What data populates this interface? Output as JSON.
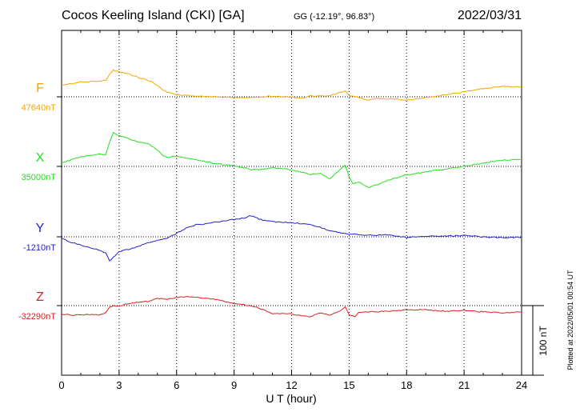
{
  "header": {
    "title": "Cocos Keeling Island (CKI)  [GA]",
    "coords": "GG (-12.19°,  96.83°)",
    "date": "2022/03/31"
  },
  "side_note": "Plotted at 2022/05/01 00:54 UT",
  "scale_label": "100 nT",
  "chart_data": {
    "type": "line",
    "title": "Cocos Keeling Island (CKI)  [GA]",
    "xlabel": "U T (hour)",
    "ylabel": "",
    "xlim": [
      0,
      24
    ],
    "x_ticks": [
      0,
      3,
      6,
      9,
      12,
      15,
      18,
      21,
      24
    ],
    "grid": true,
    "scale_bar_nT": 100,
    "series": [
      {
        "name": "F",
        "baseline_label": "47640nT",
        "baseline": 47640,
        "color": "#f5a500",
        "x": [
          0,
          0.5,
          1,
          1.5,
          2,
          2.3,
          2.5,
          2.7,
          3,
          3.5,
          4,
          4.5,
          5,
          5.3,
          5.5,
          6,
          7,
          8,
          9,
          10,
          11,
          12,
          12.5,
          13,
          14,
          14.5,
          14.8,
          15,
          15.5,
          16,
          16.5,
          17,
          17.5,
          18,
          19,
          20,
          21,
          22,
          23,
          24
        ],
        "y": [
          47657,
          47659,
          47661,
          47662,
          47663,
          47664,
          47672,
          47678,
          47676,
          47673,
          47668,
          47664,
          47657,
          47649,
          47647,
          47643,
          47641,
          47640,
          47639,
          47639,
          47641,
          47640,
          47638,
          47641,
          47641,
          47646,
          47648,
          47642,
          47639,
          47635,
          47638,
          47637,
          47637,
          47635,
          47639,
          47643,
          47647,
          47652,
          47655,
          47654
        ]
      },
      {
        "name": "X",
        "baseline_label": "35000nT",
        "baseline": 35000,
        "color": "#22e022",
        "x": [
          0,
          0.5,
          1,
          1.5,
          2,
          2.3,
          2.5,
          2.7,
          3,
          3.5,
          4,
          4.5,
          5,
          5.3,
          5.5,
          6,
          6.5,
          7,
          8,
          9,
          10,
          11,
          12,
          12.5,
          13,
          13.5,
          14,
          14.5,
          14.8,
          15,
          15.2,
          15.5,
          16,
          16.5,
          17,
          17.5,
          18,
          19,
          20,
          21,
          22,
          23,
          24
        ],
        "y": [
          35004,
          35010,
          35014,
          35016,
          35018,
          35016,
          35035,
          35048,
          35044,
          35040,
          35035,
          35033,
          35024,
          35015,
          35013,
          35015,
          35012,
          35010,
          35004,
          35001,
          34995,
          34998,
          34995,
          34992,
          34988,
          34990,
          34982,
          34995,
          35002,
          34985,
          34975,
          34978,
          34970,
          34974,
          34980,
          34984,
          34988,
          34992,
          34996,
          35000,
          35005,
          35009,
          35010
        ]
      },
      {
        "name": "Y",
        "baseline_label": "-1210nT",
        "baseline": -1210,
        "color": "#2020d0",
        "x": [
          0,
          0.5,
          1,
          1.5,
          2,
          2.3,
          2.5,
          2.6,
          2.8,
          3,
          3.5,
          4,
          4.5,
          5,
          5.5,
          6,
          6.5,
          7,
          8,
          9,
          9.5,
          9.8,
          10,
          10.5,
          11,
          12,
          13,
          14,
          15,
          16,
          17,
          18,
          19,
          20,
          21,
          22,
          23,
          24
        ],
        "y": [
          -1212,
          -1218,
          -1222,
          -1226,
          -1230,
          -1233,
          -1245,
          -1242,
          -1237,
          -1231,
          -1228,
          -1224,
          -1219,
          -1215,
          -1212,
          -1205,
          -1197,
          -1193,
          -1189,
          -1185,
          -1183,
          -1180,
          -1181,
          -1186,
          -1188,
          -1190,
          -1192,
          -1201,
          -1206,
          -1208,
          -1207,
          -1211,
          -1209,
          -1209,
          -1208,
          -1210,
          -1211,
          -1211
        ]
      },
      {
        "name": "Z",
        "baseline_label": "-32290nT",
        "baseline": -32290,
        "color": "#e02020",
        "x": [
          0,
          0.5,
          1,
          1.5,
          2,
          2.3,
          2.5,
          2.7,
          3,
          3.5,
          4,
          4.5,
          5,
          5.5,
          6,
          6.5,
          7,
          8,
          9,
          10,
          10.5,
          11,
          12,
          12.5,
          13,
          13.5,
          14,
          14.5,
          14.8,
          15,
          15.3,
          15.5,
          16,
          17,
          18,
          19,
          20,
          21,
          22,
          23,
          24
        ],
        "y": [
          -32302,
          -32304,
          -32303,
          -32303,
          -32303,
          -32300,
          -32292,
          -32290,
          -32291,
          -32287,
          -32285,
          -32284,
          -32280,
          -32281,
          -32278,
          -32277,
          -32278,
          -32281,
          -32287,
          -32291,
          -32296,
          -32301,
          -32302,
          -32305,
          -32306,
          -32300,
          -32304,
          -32298,
          -32292,
          -32303,
          -32306,
          -32300,
          -32299,
          -32298,
          -32296,
          -32296,
          -32298,
          -32297,
          -32299,
          -32300,
          -32299
        ]
      }
    ]
  }
}
